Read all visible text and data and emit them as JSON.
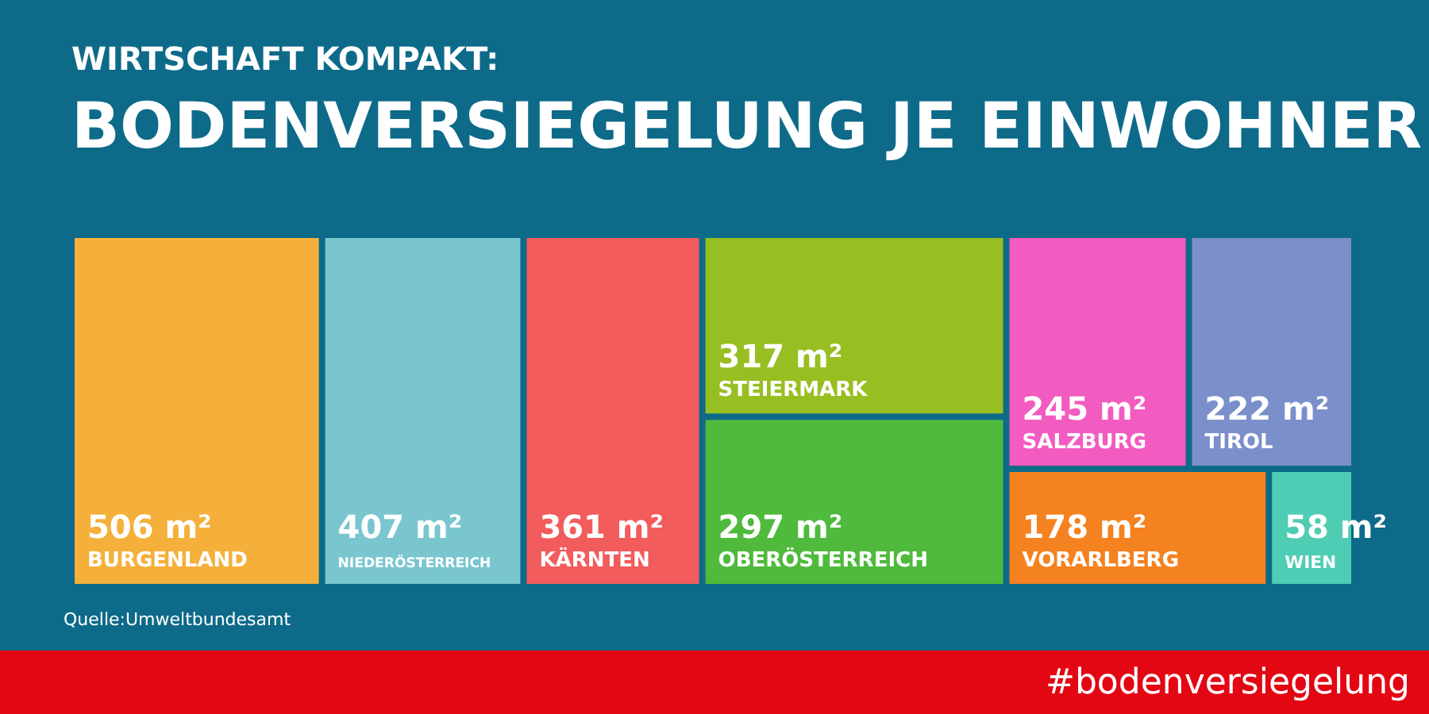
{
  "chart_data": {
    "type": "other",
    "subtitle": "WIRTSCHAFT KOMPAKT:",
    "title": "BODENVERSIEGELUNG JE EINWOHNER",
    "categories": [
      "BURGENLAND",
      "NIEDERÖSTERREICH",
      "KÄRNTEN",
      "STEIERMARK",
      "OBERÖSTERREICH",
      "SALZBURG",
      "TIROL",
      "VORARLBERG",
      "WIEN"
    ],
    "values": [
      506,
      407,
      361,
      317,
      297,
      245,
      222,
      178,
      58
    ],
    "value_labels": [
      "506 m²",
      "407 m²",
      "361 m²",
      "317 m²",
      "297 m²",
      "245 m²",
      "222 m²",
      "178 m²",
      "58 m²"
    ],
    "colors": [
      "#f5b03b",
      "#79c6cf",
      "#f25c5c",
      "#97bf22",
      "#4fba3c",
      "#f25bbf",
      "#7b8fcb",
      "#f58220",
      "#4ecdb4"
    ],
    "annotations": [
      "Quelle:Umweltbundesamt",
      "#bodenversiegelung"
    ]
  }
}
